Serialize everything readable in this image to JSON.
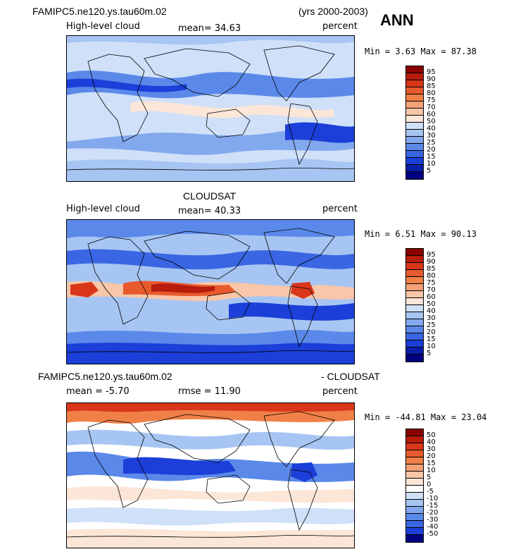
{
  "header": {
    "case_name": "FAMIPC5.ne120.ys.tau60m.02",
    "years": "(yrs 2000-2003)",
    "season": "ANN"
  },
  "panels": [
    {
      "id": "model",
      "title": "",
      "variable": "High-level cloud",
      "stat_text": "mean=  34.63",
      "units": "percent",
      "minmax": "Min =   3.63 Max =  87.38",
      "levels": [
        "95",
        "90",
        "85",
        "80",
        "75",
        "70",
        "60",
        "50",
        "40",
        "30",
        "25",
        "20",
        "15",
        "10",
        "5"
      ],
      "colors": [
        "#8b0000",
        "#b71c0c",
        "#d9361a",
        "#e85a2e",
        "#f08048",
        "#f5a178",
        "#f8c6a8",
        "#fbe6d8",
        "#cfe0f8",
        "#a7c5f3",
        "#82a8ee",
        "#5b89ea",
        "#3a66e3",
        "#1b3fd8",
        "#0b1ea8",
        "#000080"
      ]
    },
    {
      "id": "obs",
      "title": "CLOUDSAT",
      "variable": "High-level cloud",
      "stat_text": "mean=  40.33",
      "units": "percent",
      "minmax": "Min =   6.51 Max =  90.13",
      "levels": [
        "95",
        "90",
        "85",
        "80",
        "75",
        "70",
        "60",
        "50",
        "40",
        "30",
        "25",
        "20",
        "15",
        "10",
        "5"
      ],
      "colors": [
        "#8b0000",
        "#b71c0c",
        "#d9361a",
        "#e85a2e",
        "#f08048",
        "#f5a178",
        "#f8c6a8",
        "#fbe6d8",
        "#cfe0f8",
        "#a7c5f3",
        "#82a8ee",
        "#5b89ea",
        "#3a66e3",
        "#1b3fd8",
        "#0b1ea8",
        "#000080"
      ]
    },
    {
      "id": "diff",
      "title_left": "FAMIPC5.ne120.ys.tau60m.02",
      "title_right": "- CLOUDSAT",
      "stat_mean": "mean =  -5.70",
      "stat_rmse": "rmse =  11.90",
      "units": "percent",
      "minmax": "Min = -44.81 Max =  23.04",
      "levels": [
        "50",
        "40",
        "30",
        "20",
        "15",
        "10",
        "5",
        "0",
        "-5",
        "-10",
        "-15",
        "-20",
        "-30",
        "-40",
        "-50"
      ],
      "colors": [
        "#8b0000",
        "#b71c0c",
        "#d9361a",
        "#e85a2e",
        "#f08048",
        "#f5a178",
        "#f8c6a8",
        "#fbe6d8",
        "#ffffff",
        "#cfe0f8",
        "#a7c5f3",
        "#82a8ee",
        "#5b89ea",
        "#3a66e3",
        "#1b3fd8",
        "#000080"
      ]
    }
  ]
}
